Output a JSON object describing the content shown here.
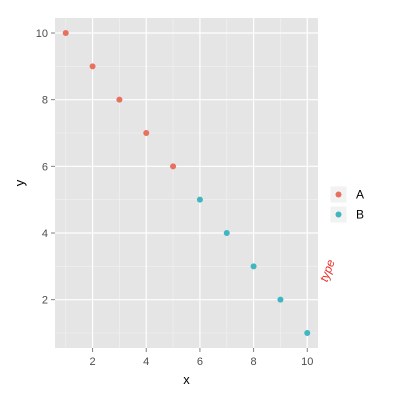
{
  "chart_data": {
    "type": "scatter",
    "xlabel": "x",
    "ylabel": "y",
    "xlim": [
      0.6,
      10.4
    ],
    "ylim": [
      0.55,
      10.45
    ],
    "xticks": [
      2,
      4,
      6,
      8,
      10
    ],
    "yticks": [
      2,
      4,
      6,
      8,
      10
    ],
    "grid": true,
    "legend": {
      "title": "type",
      "placement": "right"
    },
    "series": [
      {
        "name": "A",
        "color": "#e8705f",
        "x": [
          1,
          2,
          3,
          4,
          5
        ],
        "y": [
          10,
          9,
          8,
          7,
          6
        ]
      },
      {
        "name": "B",
        "color": "#3fb6c2",
        "x": [
          6,
          7,
          8,
          9,
          10
        ],
        "y": [
          5,
          4,
          3,
          2,
          1
        ]
      }
    ],
    "colors": {
      "panel": "#e5e5e5",
      "grid_major": "#ffffff",
      "grid_minor": "#f2f2f2",
      "legend_title": "#e8302a"
    }
  }
}
